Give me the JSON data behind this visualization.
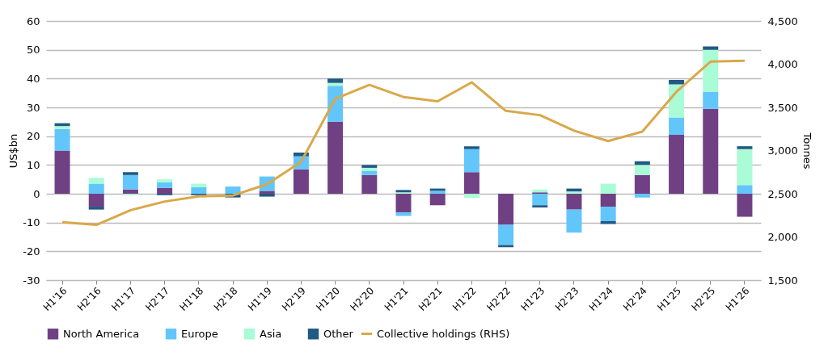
{
  "chart_data": {
    "type": "bar",
    "stacked": true,
    "ylabel": "US$bn",
    "y2label": "Tonnes",
    "categories": [
      "H1'16",
      "H2'16",
      "H1'17",
      "H2'17",
      "H1'18",
      "H2'18",
      "H1'19",
      "H2'19",
      "H1'20",
      "H2'20",
      "H1'21",
      "H2'21",
      "H1'22",
      "H2'22",
      "H1'23",
      "H2'23",
      "H1'24",
      "H2'24",
      "H1'25",
      "H2'25",
      "H1'26"
    ],
    "series": [
      {
        "name": "North America",
        "color": "#6f4184",
        "values": [
          15,
          -4.5,
          1.5,
          2,
          0,
          0,
          1,
          8.5,
          25,
          6.5,
          -6.5,
          -4,
          7.5,
          -10.8,
          0.5,
          -5.5,
          -4.5,
          6.5,
          20.5,
          29.5,
          -8
        ]
      },
      {
        "name": "Europe",
        "color": "#62c6fb",
        "values": [
          7.5,
          3.5,
          5,
          2,
          2.3,
          2.5,
          5,
          4.5,
          12.5,
          1.5,
          -1.2,
          1,
          8,
          -7,
          -4,
          -8,
          -5,
          -1.3,
          6,
          6,
          3
        ]
      },
      {
        "name": "Asia",
        "color": "#a9fcd6",
        "values": [
          1,
          2,
          -0.5,
          1,
          1.2,
          0,
          null,
          null,
          1,
          1,
          0.5,
          null,
          -1.5,
          0,
          1,
          0.8,
          3.5,
          3.5,
          11.5,
          14.5,
          12.5
        ]
      },
      {
        "name": "Other",
        "color": "#215a84",
        "values": [
          1,
          -1,
          1,
          -0.5,
          -0.5,
          -1.3,
          -1,
          1.3,
          1.5,
          1,
          0.8,
          0.8,
          1,
          -0.8,
          -0.8,
          1,
          -1,
          1.3,
          1.5,
          1.2,
          1
        ]
      },
      {
        "name": "Collective holdings (RHS)",
        "type": "line",
        "axis": "y2",
        "color": "#d9a84a",
        "values": [
          2170,
          2140,
          2310,
          2410,
          2470,
          2480,
          2610,
          2870,
          3600,
          3760,
          3620,
          3570,
          3790,
          3460,
          3410,
          3230,
          3110,
          3220,
          3680,
          4030,
          4040
        ]
      }
    ],
    "ylim": [
      -30,
      60
    ],
    "yticks": [
      -30,
      -20,
      -10,
      0,
      10,
      20,
      30,
      40,
      50,
      60
    ],
    "y2lim": [
      1500,
      4500
    ],
    "y2ticks": [
      {
        "value": 1500,
        "label": "1,500"
      },
      {
        "value": 2000,
        "label": "2,000"
      },
      {
        "value": 2500,
        "label": "2,500"
      },
      {
        "value": 3000,
        "label": "3,000"
      },
      {
        "value": 3500,
        "label": "3,500"
      },
      {
        "value": 4000,
        "label": "4,000"
      },
      {
        "value": 4500,
        "label": "4,500"
      }
    ],
    "grid": "y",
    "legend": "bottom"
  }
}
